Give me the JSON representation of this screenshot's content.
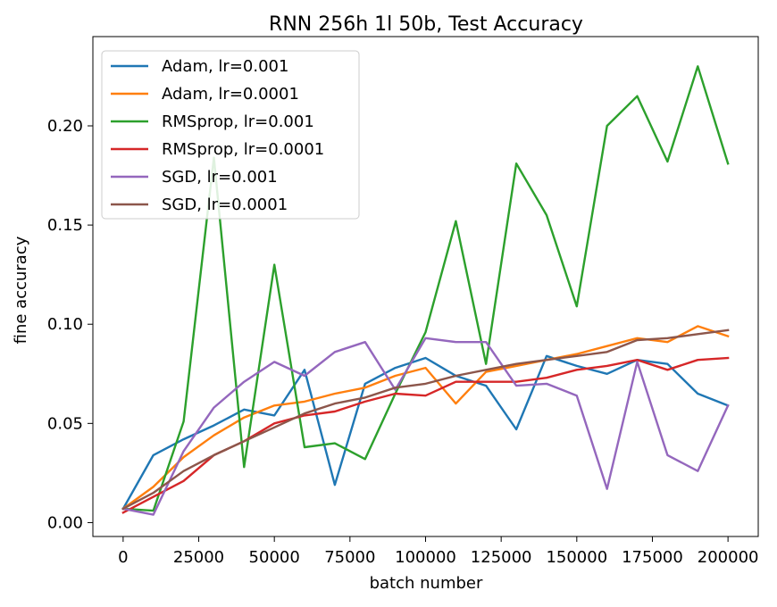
{
  "chart_data": {
    "type": "line",
    "title": "RNN 256h 1l 50b, Test Accuracy",
    "xlabel": "batch number",
    "ylabel": "fine accuracy",
    "xlim": [
      -10000,
      210000
    ],
    "ylim": [
      -0.007,
      0.245
    ],
    "xticks": [
      0,
      25000,
      50000,
      75000,
      100000,
      125000,
      150000,
      175000,
      200000
    ],
    "yticks": [
      0.0,
      0.05,
      0.1,
      0.15,
      0.2
    ],
    "xtick_labels": [
      "0",
      "25000",
      "50000",
      "75000",
      "100000",
      "125000",
      "150000",
      "175000",
      "200000"
    ],
    "ytick_labels": [
      "0.00",
      "0.05",
      "0.10",
      "0.15",
      "0.20"
    ],
    "grid": false,
    "legend_position": "top-left",
    "x": [
      0,
      10000,
      20000,
      30000,
      40000,
      50000,
      60000,
      70000,
      80000,
      90000,
      100000,
      110000,
      120000,
      130000,
      140000,
      150000,
      160000,
      170000,
      180000,
      190000,
      200000
    ],
    "series": [
      {
        "name": "Adam, lr=0.001",
        "color": "#1f77b4",
        "values": [
          0.007,
          0.034,
          0.042,
          0.049,
          0.057,
          0.054,
          0.077,
          0.019,
          0.07,
          0.078,
          0.083,
          0.074,
          0.069,
          0.047,
          0.084,
          0.079,
          0.075,
          0.082,
          0.08,
          0.065,
          0.059
        ]
      },
      {
        "name": "Adam, lr=0.0001",
        "color": "#ff7f0e",
        "values": [
          0.007,
          0.018,
          0.033,
          0.044,
          0.053,
          0.059,
          0.061,
          0.065,
          0.068,
          0.074,
          0.078,
          0.06,
          0.076,
          0.079,
          0.082,
          0.085,
          0.089,
          0.093,
          0.091,
          0.099,
          0.094
        ]
      },
      {
        "name": "RMSprop, lr=0.001",
        "color": "#2ca02c",
        "values": [
          0.007,
          0.006,
          0.051,
          0.184,
          0.028,
          0.13,
          0.038,
          0.04,
          0.032,
          0.065,
          0.096,
          0.152,
          0.08,
          0.181,
          0.155,
          0.109,
          0.2,
          0.215,
          0.182,
          0.23,
          0.181
        ]
      },
      {
        "name": "RMSprop, lr=0.0001",
        "color": "#d62728",
        "values": [
          0.005,
          0.013,
          0.021,
          0.034,
          0.041,
          0.05,
          0.054,
          0.056,
          0.061,
          0.065,
          0.064,
          0.071,
          0.071,
          0.071,
          0.073,
          0.077,
          0.079,
          0.082,
          0.077,
          0.082,
          0.083
        ]
      },
      {
        "name": "SGD, lr=0.001",
        "color": "#9467bd",
        "values": [
          0.007,
          0.004,
          0.036,
          0.058,
          0.071,
          0.081,
          0.074,
          0.086,
          0.091,
          0.067,
          0.093,
          0.091,
          0.091,
          0.069,
          0.07,
          0.064,
          0.017,
          0.081,
          0.034,
          0.026,
          0.059
        ]
      },
      {
        "name": "SGD, lr=0.0001",
        "color": "#8c564b",
        "values": [
          0.007,
          0.015,
          0.026,
          0.034,
          0.041,
          0.048,
          0.055,
          0.06,
          0.063,
          0.068,
          0.07,
          0.074,
          0.077,
          0.08,
          0.082,
          0.084,
          0.086,
          0.092,
          0.093,
          0.095,
          0.097
        ]
      }
    ]
  }
}
